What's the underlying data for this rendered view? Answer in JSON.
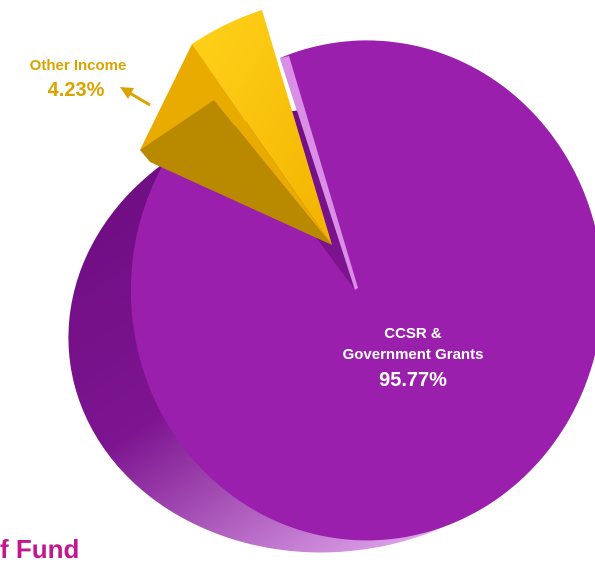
{
  "chart_data": {
    "type": "pie",
    "title": "",
    "slices": [
      {
        "label_lines": [
          "CCSR &",
          "Government Grants"
        ],
        "value": 95.77,
        "value_label": "95.77%",
        "color": "#9b1fad"
      },
      {
        "label_lines": [
          "Other Income"
        ],
        "value": 4.23,
        "value_label": "4.23%",
        "color": "#f9be00"
      }
    ],
    "style": "3d-exploded",
    "legend": "none"
  },
  "footer_text": "f Fund",
  "colors": {
    "purple": "#9b1fad",
    "purple_side": "#6d0a80",
    "purple_highlight": "#d98fe6",
    "gold": "#f9be00",
    "gold_side": "#b98900",
    "label_gold": "#d9a300",
    "fund_text": "#c2188f"
  }
}
